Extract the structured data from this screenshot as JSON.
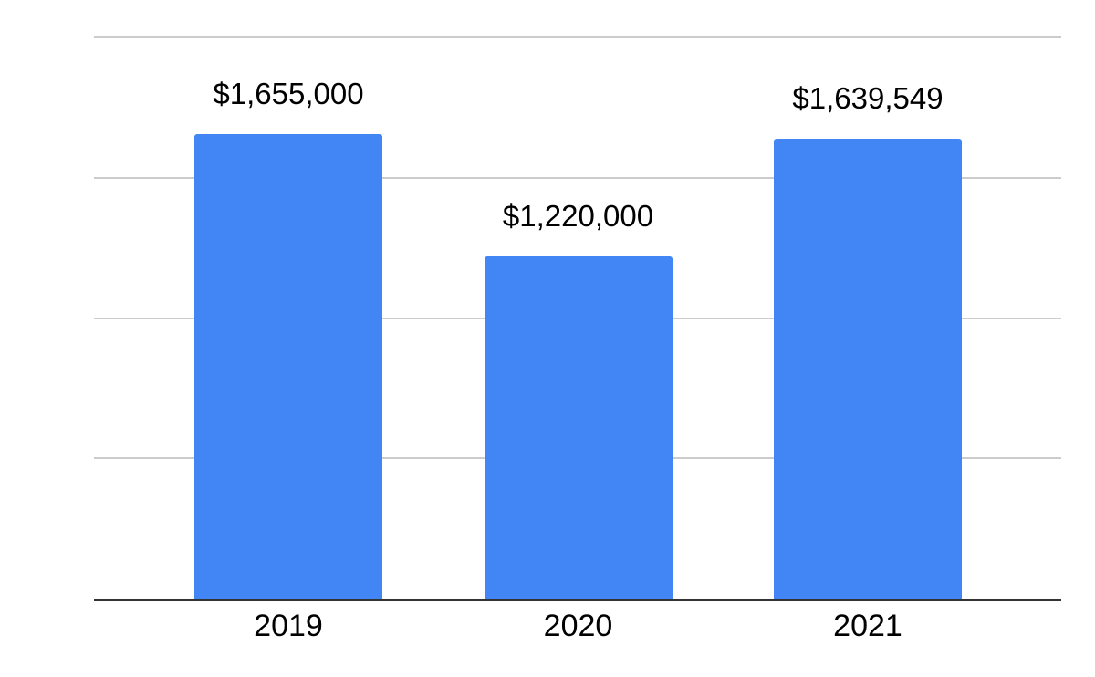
{
  "chart_data": {
    "type": "bar",
    "title": "",
    "xlabel": "",
    "ylabel": "",
    "categories": [
      "2019",
      "2020",
      "2021"
    ],
    "values": [
      1655000,
      1220000,
      1639549
    ],
    "data_labels": [
      "$1,655,000",
      "$1,220,000",
      "$1,639,549"
    ],
    "ylim": [
      0,
      2000000
    ],
    "gridline_step": 500000,
    "grid": true,
    "legend": "none",
    "y_axis_labels_visible": false,
    "colors": {
      "bar": "#4285f4",
      "gridline": "#cccccc",
      "axis_line": "#333333",
      "label_text": "#000000"
    }
  }
}
